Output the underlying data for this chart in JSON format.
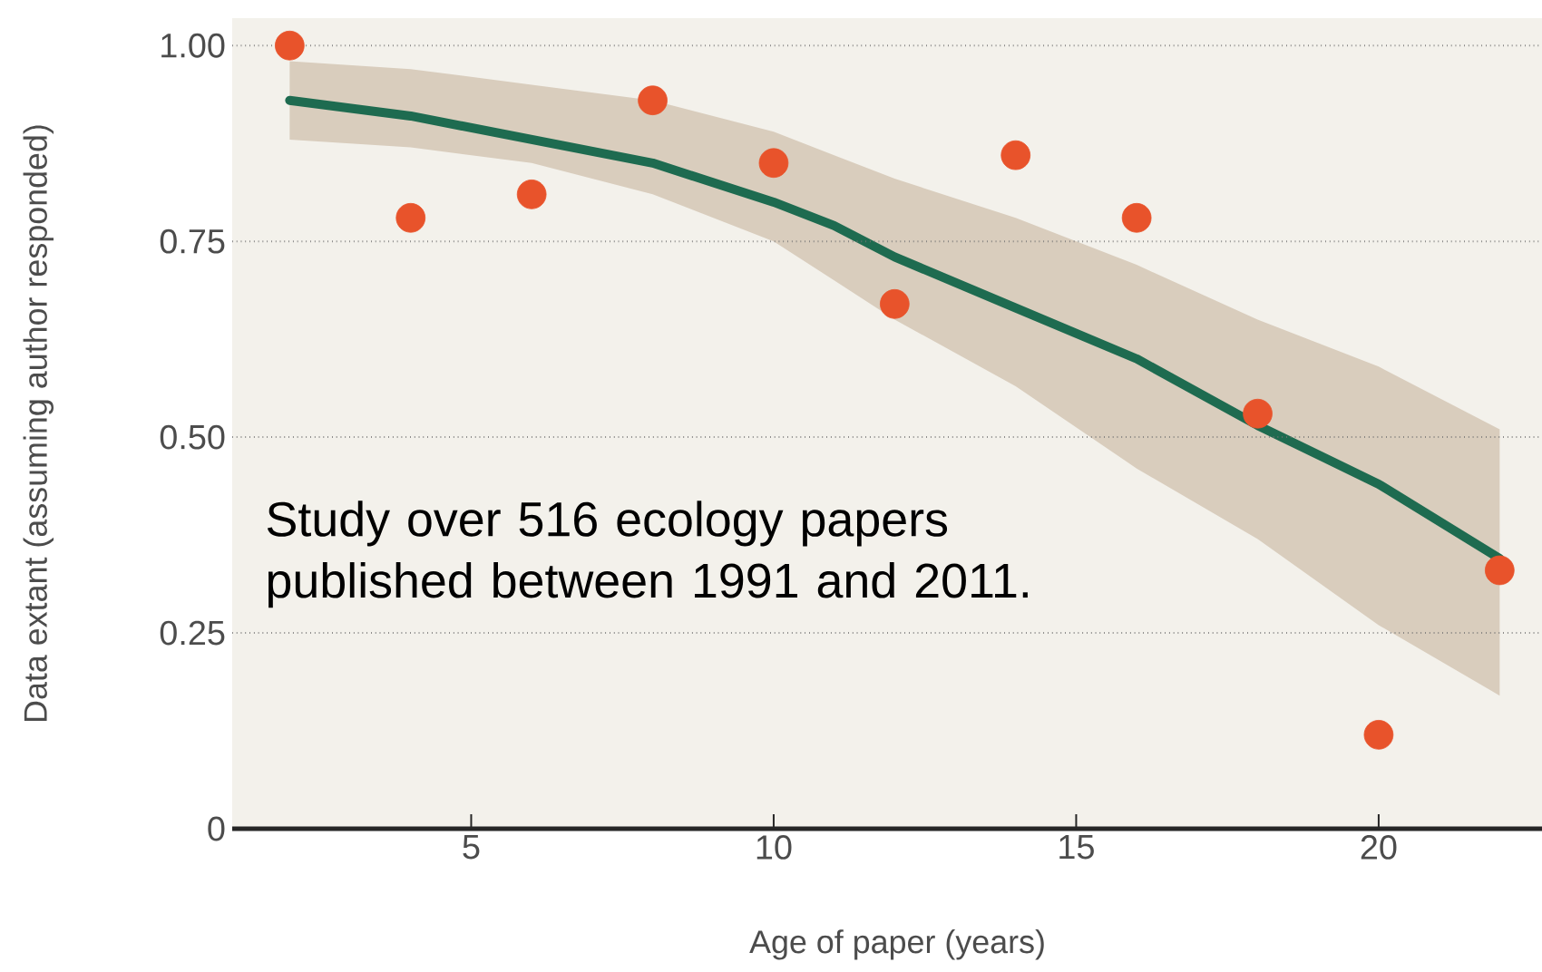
{
  "chart_data": {
    "type": "scatter",
    "xlabel": "Age of paper (years)",
    "ylabel": "Data extant (assuming author responded)",
    "annotations": [
      "Study over 516 ecology papers published between 1991 and 2011."
    ],
    "xlim": [
      1.05,
      22.7
    ],
    "ylim": [
      0,
      1.035
    ],
    "xticks": [
      5,
      10,
      15,
      20
    ],
    "yticks": [
      0,
      0.25,
      {
        "value": 0.5,
        "label": "0.50"
      },
      0.75,
      {
        "value": 1,
        "label": "1.00"
      }
    ],
    "grid": "y",
    "series": [
      {
        "type": "line",
        "color": "#1e6b50",
        "x": [
          2,
          4,
          6,
          8,
          10,
          11,
          12,
          14,
          16,
          18,
          20,
          22
        ],
        "values": [
          0.93,
          0.91,
          0.88,
          0.85,
          0.8,
          0.77,
          0.73,
          0.665,
          0.6,
          0.515,
          0.44,
          0.345
        ],
        "lower": [
          0.88,
          0.87,
          0.85,
          0.81,
          0.75,
          0.7,
          0.65,
          0.565,
          0.46,
          0.37,
          0.26,
          0.17
        ],
        "upper": [
          0.98,
          0.97,
          0.95,
          0.93,
          0.89,
          0.86,
          0.83,
          0.78,
          0.72,
          0.65,
          0.59,
          0.51
        ],
        "marker": "none"
      },
      {
        "color": "#e8532b",
        "marker": "circle",
        "x": [
          2,
          4,
          6,
          8,
          10,
          12,
          14,
          16,
          18,
          20,
          22
        ],
        "values": [
          1.0,
          0.78,
          0.81,
          0.93,
          0.85,
          0.67,
          0.86,
          0.78,
          0.53,
          0.12,
          0.33
        ]
      }
    ]
  }
}
